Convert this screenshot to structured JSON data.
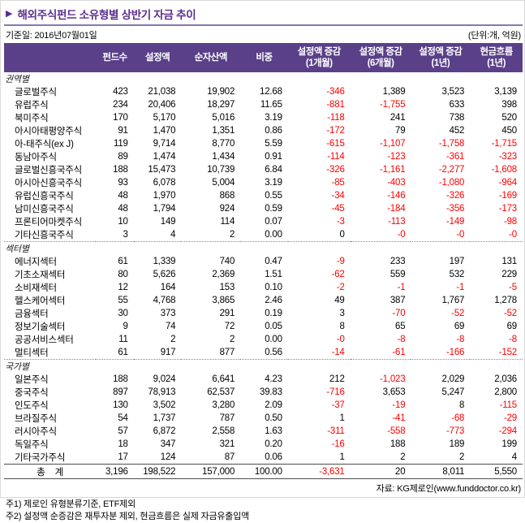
{
  "colors": {
    "header_bg": "#5a4089",
    "title_purple": "#5a2d8f",
    "negative_red": "#ff0000"
  },
  "header": {
    "arrow_icon": "▶",
    "title": "해외주식펀드 소유형별 상반기 자금 추이",
    "base_date": "기준일: 2016년07월01일",
    "unit": "(단위:개, 억원)"
  },
  "table": {
    "columns": [
      {
        "top": "펀드수",
        "bottom": ""
      },
      {
        "top": "설정액",
        "bottom": ""
      },
      {
        "top": "순자산액",
        "bottom": ""
      },
      {
        "top": "비중",
        "bottom": ""
      },
      {
        "top": "설정액 증감",
        "bottom": "(1개월)"
      },
      {
        "top": "설정액 증감",
        "bottom": "(6개월)"
      },
      {
        "top": "설정액 증감",
        "bottom": "(1년)"
      },
      {
        "top": "현금흐름",
        "bottom": "(1년)"
      }
    ],
    "sections": [
      {
        "label": "권역별",
        "rows": [
          {
            "name": "글로벌주식",
            "values": [
              "423",
              "21,038",
              "19,902",
              "12.68",
              "-346",
              "1,389",
              "3,523",
              "3,139"
            ]
          },
          {
            "name": "유럽주식",
            "values": [
              "234",
              "20,406",
              "18,297",
              "11.65",
              "-881",
              "-1,755",
              "633",
              "398"
            ]
          },
          {
            "name": "북미주식",
            "values": [
              "170",
              "5,170",
              "5,016",
              "3.19",
              "-118",
              "241",
              "738",
              "520"
            ]
          },
          {
            "name": "아시아태평양주식",
            "values": [
              "91",
              "1,470",
              "1,351",
              "0.86",
              "-172",
              "79",
              "452",
              "450"
            ]
          },
          {
            "name": "아-태주식(ex J)",
            "values": [
              "119",
              "9,714",
              "8,770",
              "5.59",
              "-615",
              "-1,107",
              "-1,758",
              "-1,715"
            ]
          },
          {
            "name": "동남아주식",
            "values": [
              "89",
              "1,474",
              "1,434",
              "0.91",
              "-114",
              "-123",
              "-361",
              "-323"
            ]
          },
          {
            "name": "글로벌신흥국주식",
            "values": [
              "188",
              "15,473",
              "10,739",
              "6.84",
              "-326",
              "-1,161",
              "-2,277",
              "-1,608"
            ]
          },
          {
            "name": "아시아신흥국주식",
            "values": [
              "93",
              "6,078",
              "5,004",
              "3.19",
              "-85",
              "-403",
              "-1,080",
              "-964"
            ]
          },
          {
            "name": "유럽신흥국주식",
            "values": [
              "48",
              "1,970",
              "868",
              "0.55",
              "-34",
              "-146",
              "-326",
              "-169"
            ]
          },
          {
            "name": "남미신흥국주식",
            "values": [
              "48",
              "1,794",
              "924",
              "0.59",
              "-45",
              "-184",
              "-356",
              "-173"
            ]
          },
          {
            "name": "프론티어마켓주식",
            "values": [
              "10",
              "149",
              "114",
              "0.07",
              "-3",
              "-113",
              "-149",
              "-98"
            ]
          },
          {
            "name": "기타신흥국주식",
            "values": [
              "3",
              "4",
              "2",
              "0.00",
              "0",
              "-0",
              "-0",
              "-0"
            ]
          }
        ]
      },
      {
        "label": "섹터별",
        "rows": [
          {
            "name": "에너지섹터",
            "values": [
              "61",
              "1,339",
              "740",
              "0.47",
              "-9",
              "233",
              "197",
              "131"
            ]
          },
          {
            "name": "기초소재섹터",
            "values": [
              "80",
              "5,626",
              "2,369",
              "1.51",
              "-62",
              "559",
              "532",
              "229"
            ]
          },
          {
            "name": "소비재섹터",
            "values": [
              "12",
              "164",
              "153",
              "0.10",
              "-2",
              "-1",
              "-1",
              "-5"
            ]
          },
          {
            "name": "헬스케어섹터",
            "values": [
              "55",
              "4,768",
              "3,865",
              "2.46",
              "49",
              "387",
              "1,767",
              "1,278"
            ]
          },
          {
            "name": "금융섹터",
            "values": [
              "30",
              "373",
              "291",
              "0.19",
              "3",
              "-70",
              "-52",
              "-52"
            ]
          },
          {
            "name": "정보기술섹터",
            "values": [
              "9",
              "74",
              "72",
              "0.05",
              "8",
              "65",
              "69",
              "69"
            ]
          },
          {
            "name": "공공서비스섹터",
            "values": [
              "11",
              "2",
              "2",
              "0.00",
              "-0",
              "-8",
              "-8",
              "-8"
            ]
          },
          {
            "name": "멀티섹터",
            "values": [
              "61",
              "917",
              "877",
              "0.56",
              "-14",
              "-61",
              "-166",
              "-152"
            ]
          }
        ]
      },
      {
        "label": "국가별",
        "rows": [
          {
            "name": "일본주식",
            "values": [
              "188",
              "9,024",
              "6,641",
              "4.23",
              "212",
              "-1,023",
              "2,029",
              "2,036"
            ]
          },
          {
            "name": "중국주식",
            "values": [
              "897",
              "78,913",
              "62,537",
              "39.83",
              "-716",
              "3,653",
              "5,247",
              "2,800"
            ]
          },
          {
            "name": "인도주식",
            "values": [
              "130",
              "3,502",
              "3,280",
              "2.09",
              "-37",
              "-19",
              "8",
              "-115"
            ]
          },
          {
            "name": "브라질주식",
            "values": [
              "54",
              "1,737",
              "787",
              "0.50",
              "1",
              "-41",
              "-68",
              "-29"
            ]
          },
          {
            "name": "러시아주식",
            "values": [
              "57",
              "6,872",
              "2,558",
              "1.63",
              "-311",
              "-558",
              "-773",
              "-294"
            ]
          },
          {
            "name": "독일주식",
            "values": [
              "18",
              "347",
              "321",
              "0.20",
              "-16",
              "188",
              "189",
              "199"
            ]
          },
          {
            "name": "기타국가주식",
            "values": [
              "17",
              "124",
              "87",
              "0.06",
              "1",
              "2",
              "2",
              "4"
            ]
          }
        ]
      }
    ],
    "total": {
      "label": "총    계",
      "values": [
        "3,196",
        "198,522",
        "157,000",
        "100.00",
        "-3,631",
        "20",
        "8,011",
        "5,550"
      ]
    }
  },
  "footer": {
    "source": "자료: KG제로인(www.funddoctor.co.kr)",
    "notes": [
      "주1) 제로인 유형분류기준, ETF제외",
      "주2) 설정액 순증감은 재투자분 제외, 현금흐름은 실제 자금유출입액"
    ]
  }
}
